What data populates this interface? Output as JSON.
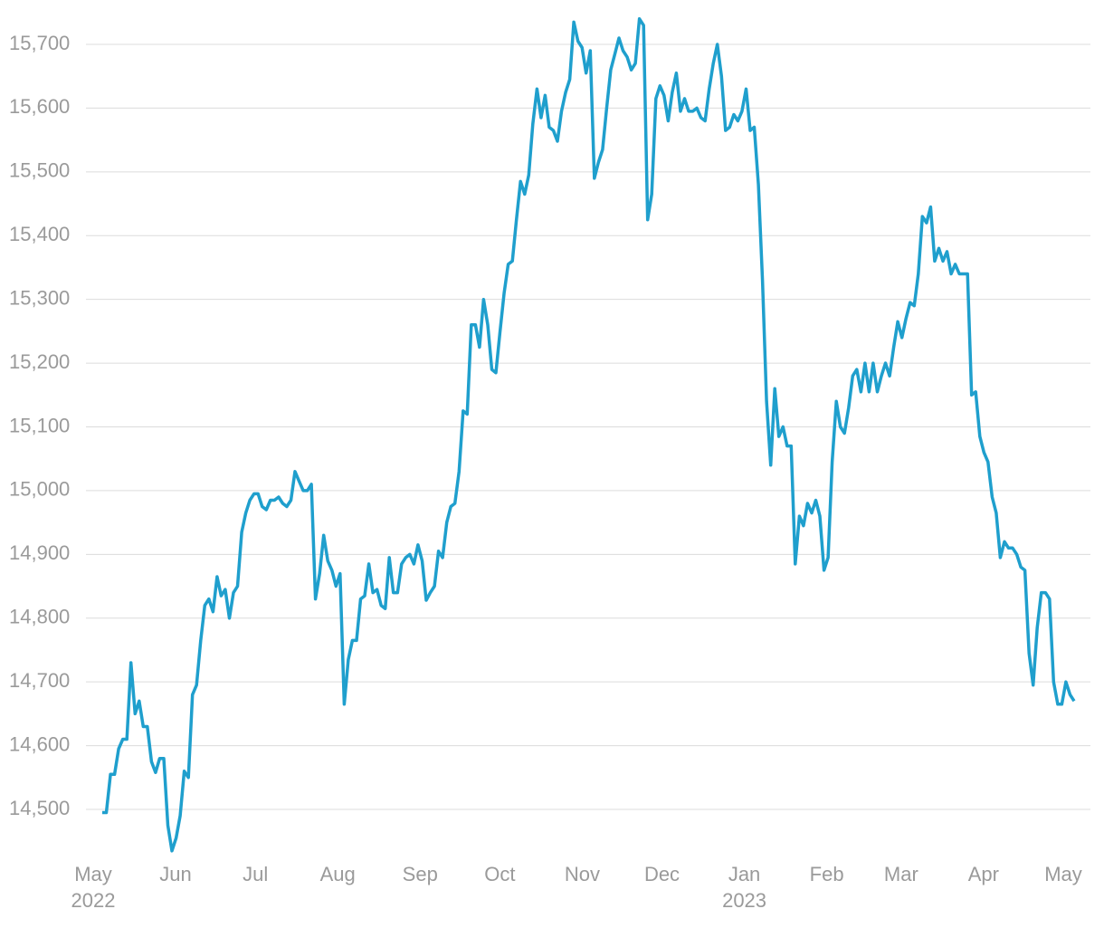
{
  "chart_data": {
    "type": "line",
    "series": [
      {
        "name": null,
        "color": "#1f9fcd",
        "values": [
          14495,
          14495,
          14555,
          14555,
          14595,
          14610,
          14610,
          14730,
          14650,
          14670,
          14630,
          14630,
          14575,
          14558,
          14580,
          14580,
          14475,
          14435,
          14455,
          14490,
          14560,
          14550,
          14680,
          14695,
          14765,
          14820,
          14830,
          14810,
          14865,
          14835,
          14845,
          14800,
          14840,
          14850,
          14935,
          14965,
          14985,
          14995,
          14995,
          14975,
          14970,
          14985,
          14985,
          14990,
          14980,
          14975,
          14985,
          15030,
          15015,
          15000,
          15000,
          15010,
          14830,
          14870,
          14930,
          14890,
          14875,
          14850,
          14870,
          14665,
          14735,
          14765,
          14765,
          14830,
          14835,
          14885,
          14840,
          14845,
          14820,
          14815,
          14895,
          14840,
          14840,
          14885,
          14895,
          14900,
          14885,
          14915,
          14890,
          14828,
          14840,
          14850,
          14905,
          14895,
          14950,
          14975,
          14980,
          15030,
          15125,
          15120,
          15260,
          15260,
          15225,
          15300,
          15260,
          15190,
          15185,
          15250,
          15310,
          15355,
          15360,
          15425,
          15485,
          15465,
          15495,
          15575,
          15630,
          15585,
          15620,
          15570,
          15565,
          15548,
          15595,
          15625,
          15645,
          15735,
          15705,
          15695,
          15655,
          15690,
          15490,
          15515,
          15535,
          15600,
          15660,
          15685,
          15710,
          15690,
          15680,
          15660,
          15670,
          15740,
          15730,
          15425,
          15465,
          15615,
          15635,
          15620,
          15580,
          15625,
          15655,
          15595,
          15615,
          15595,
          15595,
          15600,
          15585,
          15580,
          15630,
          15670,
          15700,
          15650,
          15565,
          15570,
          15590,
          15580,
          15595,
          15630,
          15565,
          15570,
          15480,
          15330,
          15140,
          15040,
          15160,
          15085,
          15100,
          15070,
          15070,
          14885,
          14960,
          14945,
          14980,
          14965,
          14985,
          14960,
          14875,
          14895,
          15045,
          15140,
          15100,
          15090,
          15130,
          15180,
          15190,
          15155,
          15200,
          15155,
          15200,
          15155,
          15180,
          15200,
          15180,
          15225,
          15265,
          15240,
          15270,
          15295,
          15290,
          15340,
          15430,
          15420,
          15445,
          15360,
          15380,
          15360,
          15375,
          15340,
          15355,
          15340,
          15340,
          15340,
          15150,
          15155,
          15085,
          15060,
          15045,
          14990,
          14965,
          14895,
          14920,
          14910,
          14910,
          14900,
          14880,
          14875,
          14745,
          14695,
          14785,
          14840,
          14840,
          14830,
          14700,
          14665,
          14665,
          14700,
          14680,
          14670
        ]
      }
    ],
    "xticks": [
      {
        "value": "2022-05",
        "label": "May",
        "year": "2022"
      },
      {
        "value": "2022-06",
        "label": "Jun"
      },
      {
        "value": "2022-07",
        "label": "Jul"
      },
      {
        "value": "2022-08",
        "label": "Aug"
      },
      {
        "value": "2022-09",
        "label": "Sep"
      },
      {
        "value": "2022-10",
        "label": "Oct"
      },
      {
        "value": "2022-11",
        "label": "Nov"
      },
      {
        "value": "2022-12",
        "label": "Dec"
      },
      {
        "value": "2023-01",
        "label": "Jan",
        "year": "2023"
      },
      {
        "value": "2023-02",
        "label": "Feb"
      },
      {
        "value": "2023-03",
        "label": "Mar"
      },
      {
        "value": "2023-04",
        "label": "Apr"
      },
      {
        "value": "2023-05",
        "label": "May"
      }
    ],
    "ylim": [
      14430,
      15750
    ],
    "yticks": [
      {
        "value": 14500,
        "label": "14,500"
      },
      {
        "value": 14600,
        "label": "14,600"
      },
      {
        "value": 14700,
        "label": "14,700"
      },
      {
        "value": 14800,
        "label": "14,800"
      },
      {
        "value": 14900,
        "label": "14,900"
      },
      {
        "value": 15000,
        "label": "15,000"
      },
      {
        "value": 15100,
        "label": "15,100"
      },
      {
        "value": 15200,
        "label": "15,200"
      },
      {
        "value": 15300,
        "label": "15,300"
      },
      {
        "value": 15400,
        "label": "15,400"
      },
      {
        "value": 15500,
        "label": "15,500"
      },
      {
        "value": 15600,
        "label": "15,600"
      },
      {
        "value": 15700,
        "label": "15,700"
      }
    ],
    "grid": true
  }
}
